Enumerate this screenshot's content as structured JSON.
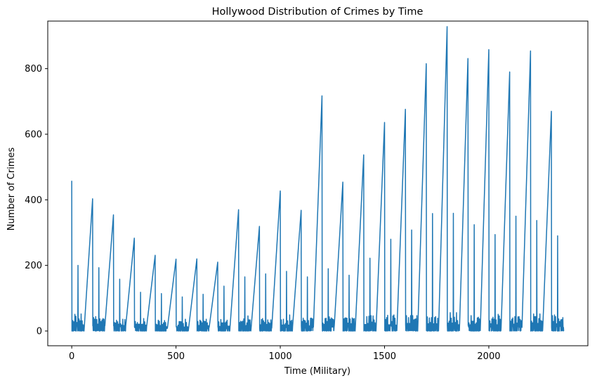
{
  "chart_data": {
    "type": "line",
    "title": "Hollywood Distribution of Crimes by Time",
    "xlabel": "Time (Military)",
    "ylabel": "Number of Crimes",
    "xlim": [
      -115,
      2475
    ],
    "ylim": [
      -45,
      945
    ],
    "xticks": [
      0,
      500,
      1000,
      1500,
      2000
    ],
    "yticks": [
      0,
      200,
      400,
      600,
      800
    ],
    "xtick_labels": [
      "0",
      "500",
      "1000",
      "1500",
      "2000"
    ],
    "ytick_labels": [
      "0",
      "200",
      "400",
      "600",
      "800"
    ],
    "grid": false,
    "line_color": "#1f77b4",
    "series": [
      {
        "hourly_peaks": [
          {
            "time": 0,
            "value": 458
          },
          {
            "time": 100,
            "value": 403
          },
          {
            "time": 200,
            "value": 354
          },
          {
            "time": 300,
            "value": 283
          },
          {
            "time": 400,
            "value": 231
          },
          {
            "time": 500,
            "value": 219
          },
          {
            "time": 600,
            "value": 220
          },
          {
            "time": 700,
            "value": 210
          },
          {
            "time": 800,
            "value": 370
          },
          {
            "time": 900,
            "value": 319
          },
          {
            "time": 1000,
            "value": 427
          },
          {
            "time": 1100,
            "value": 368
          },
          {
            "time": 1200,
            "value": 717
          },
          {
            "time": 1300,
            "value": 454
          },
          {
            "time": 1400,
            "value": 537
          },
          {
            "time": 1500,
            "value": 636
          },
          {
            "time": 1600,
            "value": 676
          },
          {
            "time": 1700,
            "value": 815
          },
          {
            "time": 1800,
            "value": 928
          },
          {
            "time": 1900,
            "value": 831
          },
          {
            "time": 2000,
            "value": 858
          },
          {
            "time": 2100,
            "value": 790
          },
          {
            "time": 2200,
            "value": 854
          },
          {
            "time": 2300,
            "value": 670
          }
        ],
        "half_hour_peaks": [
          {
            "time": 30,
            "value": 200
          },
          {
            "time": 130,
            "value": 193
          },
          {
            "time": 230,
            "value": 158
          },
          {
            "time": 330,
            "value": 118
          },
          {
            "time": 430,
            "value": 114
          },
          {
            "time": 530,
            "value": 104
          },
          {
            "time": 630,
            "value": 112
          },
          {
            "time": 730,
            "value": 137
          },
          {
            "time": 830,
            "value": 165
          },
          {
            "time": 930,
            "value": 174
          },
          {
            "time": 1030,
            "value": 182
          },
          {
            "time": 1130,
            "value": 165
          },
          {
            "time": 1230,
            "value": 190
          },
          {
            "time": 1330,
            "value": 170
          },
          {
            "time": 1430,
            "value": 222
          },
          {
            "time": 1530,
            "value": 280
          },
          {
            "time": 1630,
            "value": 308
          },
          {
            "time": 1730,
            "value": 358
          },
          {
            "time": 1830,
            "value": 359
          },
          {
            "time": 1930,
            "value": 324
          },
          {
            "time": 2030,
            "value": 294
          },
          {
            "time": 2130,
            "value": 350
          },
          {
            "time": 2230,
            "value": 337
          },
          {
            "time": 2330,
            "value": 290
          }
        ],
        "minute_level_range": [
          0,
          60
        ]
      }
    ]
  }
}
